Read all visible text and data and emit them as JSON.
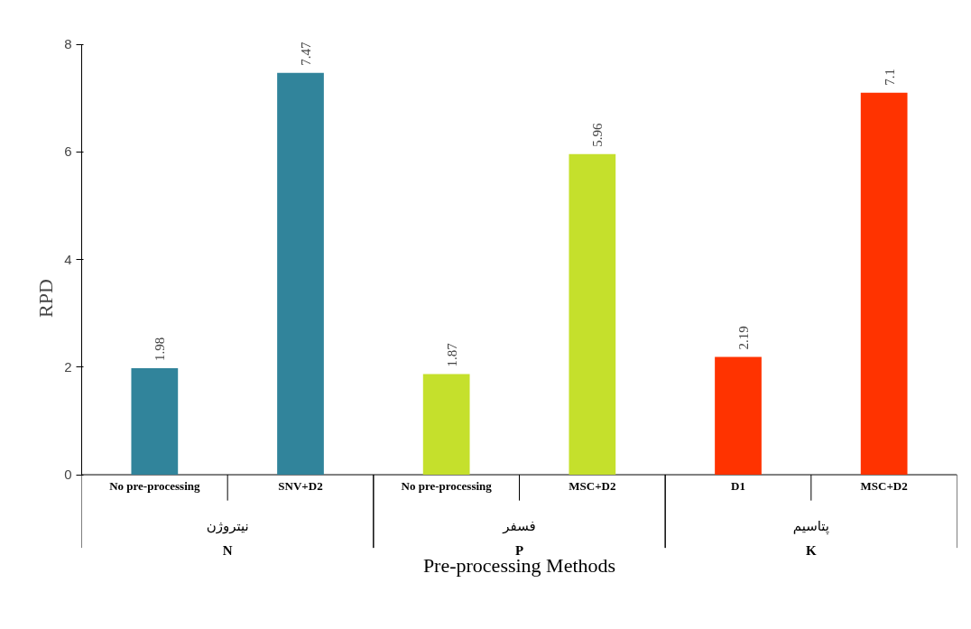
{
  "chart_data": {
    "type": "bar",
    "xlabel": "Pre-processing Methods",
    "ylabel": "RPD",
    "categories": [
      "No pre-processing",
      "SNV+D2",
      "No pre-processing",
      "MSC+D2",
      "D1",
      "MSC+D2"
    ],
    "series": [
      {
        "color": "#31849b",
        "values": [
          1.98,
          7.47,
          null,
          null,
          null,
          null
        ]
      },
      {
        "color": "#c5e02c",
        "values": [
          null,
          null,
          1.87,
          5.96,
          null,
          null
        ]
      },
      {
        "color": "#ff3300",
        "values": [
          null,
          null,
          null,
          null,
          2.19,
          7.1
        ]
      }
    ],
    "annotations": [
      "نیتروژن\nN",
      "فسفر\nP",
      "پتاسیم\nK"
    ],
    "ylim": [
      0,
      8
    ],
    "yticks": [
      0,
      2,
      4,
      6,
      8
    ],
    "grid": false,
    "data_labels": true
  }
}
